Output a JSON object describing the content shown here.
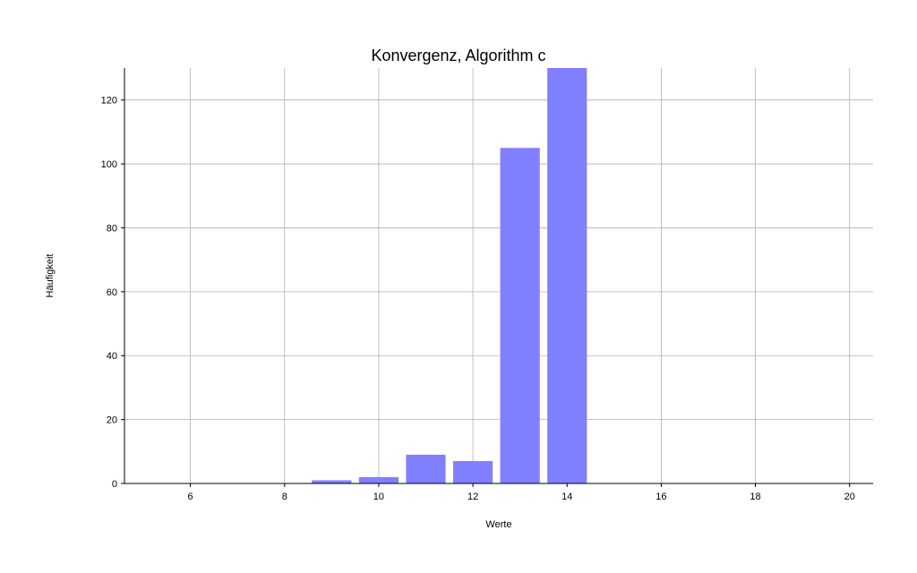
{
  "chart_data": {
    "type": "bar",
    "title": "Konvergenz, Algorithm c",
    "xlabel": "Werte",
    "ylabel": "Häufigkeit",
    "xlim": [
      4.6,
      20.5
    ],
    "ylim": [
      0,
      130
    ],
    "xticks": [
      6,
      8,
      10,
      12,
      14,
      16,
      18,
      20
    ],
    "yticks": [
      0,
      20,
      40,
      60,
      80,
      100,
      120
    ],
    "bar_width": 0.84,
    "bar_color": "#8080ff",
    "grid": true,
    "x": [
      9,
      10,
      11,
      12,
      13,
      14
    ],
    "values": [
      1,
      2,
      9,
      7,
      105,
      130
    ]
  }
}
